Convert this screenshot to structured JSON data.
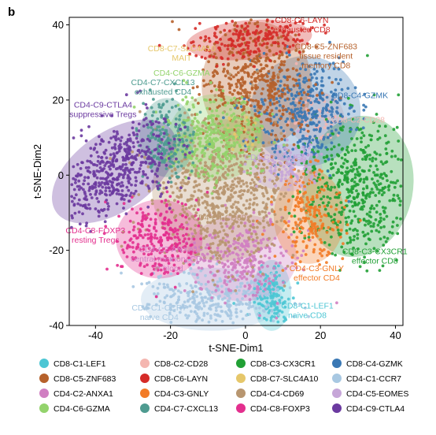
{
  "panel_letter": "b",
  "chart_data": {
    "type": "scatter",
    "xlabel": "t-SNE-Dim1",
    "ylabel": "t-SNE-Dim2",
    "xlim": [
      -47,
      42
    ],
    "ylim": [
      -40,
      42
    ],
    "xticks": [
      -40,
      -20,
      0,
      20,
      40
    ],
    "yticks": [
      -40,
      -20,
      0,
      20,
      40
    ],
    "grid": false,
    "legend_position": "bottom",
    "clusters": [
      {
        "id": "CD8-C1-LEF1",
        "color": "#4cc6d4",
        "center": [
          7,
          -32
        ],
        "spread": [
          2.5,
          4.5
        ],
        "angle": 0,
        "points": 140
      },
      {
        "id": "CD8-C2-CD28",
        "color": "#f4b6b0",
        "center": [
          19,
          15
        ],
        "spread": [
          3.5,
          3.5
        ],
        "angle": 0,
        "points": 70
      },
      {
        "id": "CD8-C3-CX3CR1",
        "color": "#21a035",
        "center": [
          30,
          -3
        ],
        "spread": [
          7,
          9
        ],
        "angle": 10,
        "points": 520
      },
      {
        "id": "CD8-C4-GZMK",
        "color": "#3a78b4",
        "center": [
          16,
          17
        ],
        "spread": [
          7,
          7
        ],
        "angle": 0,
        "points": 380
      },
      {
        "id": "CD8-C5-ZNF683",
        "color": "#b6612b",
        "center": [
          3,
          24
        ],
        "spread": [
          7,
          8
        ],
        "angle": 0,
        "points": 480
      },
      {
        "id": "CD8-C6-LAYN",
        "color": "#d52b28",
        "center": [
          1,
          36
        ],
        "spread": [
          8,
          2.5
        ],
        "angle": -5,
        "points": 200
      },
      {
        "id": "CD8-C7-SLC4A10",
        "color": "#e6c76a",
        "center": [
          -1,
          11
        ],
        "spread": [
          2.5,
          2.5
        ],
        "angle": 0,
        "points": 25
      },
      {
        "id": "CD4-C1-CCR7",
        "color": "#a8c8e2",
        "center": [
          -9,
          -33
        ],
        "spread": [
          9,
          4
        ],
        "angle": 0,
        "points": 330
      },
      {
        "id": "CD4-C2-ANXA1",
        "color": "#d07fc2",
        "center": [
          -1,
          -22
        ],
        "spread": [
          7,
          5.5
        ],
        "angle": 0,
        "points": 300
      },
      {
        "id": "CD4-C3-GNLY",
        "color": "#f27b27",
        "center": [
          17,
          -11
        ],
        "spread": [
          4.5,
          6
        ],
        "angle": 0,
        "points": 200
      },
      {
        "id": "CD4-C4-CD69",
        "color": "#b89670",
        "center": [
          -6,
          -4
        ],
        "spread": [
          9,
          9
        ],
        "angle": 0,
        "points": 720
      },
      {
        "id": "CD4-C5-EOMES",
        "color": "#c6a6d8",
        "center": [
          11,
          2
        ],
        "spread": [
          4.5,
          3
        ],
        "angle": 0,
        "points": 100
      },
      {
        "id": "CD4-C6-GZMA",
        "color": "#93d36c",
        "center": [
          -8,
          10
        ],
        "spread": [
          6,
          5.5
        ],
        "angle": 0,
        "points": 360
      },
      {
        "id": "CD4-C7-CXCL13",
        "color": "#4e9b90",
        "center": [
          -21,
          10
        ],
        "spread": [
          3.5,
          5
        ],
        "angle": 0,
        "points": 200
      },
      {
        "id": "CD4-C8-FOXP3",
        "color": "#e32f8e",
        "center": [
          -23,
          -17
        ],
        "spread": [
          5.5,
          5
        ],
        "angle": 0,
        "points": 260
      },
      {
        "id": "CD4-C9-CTLA4",
        "color": "#6b3aa0",
        "center": [
          -35,
          1
        ],
        "spread": [
          9,
          5
        ],
        "angle": -35,
        "points": 520
      }
    ],
    "annotations": [
      {
        "lines": [
          "CD8-C6-LAYN",
          "exhausted CD8"
        ],
        "color": "#d52b28",
        "at": [
          15,
          40.5
        ]
      },
      {
        "lines": [
          "CD8-C5-ZNF683",
          "tissue resident",
          "memory CD8"
        ],
        "color": "#b6612b",
        "at": [
          21.5,
          33.5
        ]
      },
      {
        "lines": [
          "CD8-C7-SLC4A10",
          "MAIT"
        ],
        "color": "#e6c76a",
        "at": [
          -17,
          33
        ]
      },
      {
        "lines": [
          "CD4-C6-GZMA"
        ],
        "color": "#93d36c",
        "at": [
          -17,
          26.5
        ]
      },
      {
        "lines": [
          "CD4-C7-CXCL13",
          "exhausted CD4"
        ],
        "color": "#4e9b90",
        "at": [
          -22,
          24
        ]
      },
      {
        "lines": [
          "CD4-C9-CTLA4",
          "suppressive Tregs"
        ],
        "color": "#6b3aa0",
        "at": [
          -38,
          18
        ]
      },
      {
        "lines": [
          "CD8-C4-GZMK"
        ],
        "color": "#3a78b4",
        "at": [
          30.5,
          20.5
        ]
      },
      {
        "lines": [
          "CD8-C2-CD28"
        ],
        "color": "#f4b6b0",
        "at": [
          30,
          14
        ]
      },
      {
        "lines": [
          "CD4-C5-EOMES"
        ],
        "color": "#c6a6d8",
        "at": [
          8,
          4
        ]
      },
      {
        "lines": [
          "CD4-C4-CD69"
        ],
        "color": "#b89670",
        "at": [
          -7,
          -12
        ]
      },
      {
        "lines": [
          "CD4-C8-FOXP3",
          "resting Tregs"
        ],
        "color": "#e32f8e",
        "at": [
          -40,
          -15.5
        ]
      },
      {
        "lines": [
          "CD4-C2-ANXA1",
          "central memory CD4",
          "in blood"
        ],
        "color": "#d07fc2",
        "at": [
          -20.5,
          -20.5
        ]
      },
      {
        "lines": [
          "CD8-C3-CX3CR1",
          "effector CD8"
        ],
        "color": "#21a035",
        "at": [
          34.5,
          -21
        ]
      },
      {
        "lines": [
          "CD4-C3-GNLY",
          "effector CD4"
        ],
        "color": "#f27b27",
        "at": [
          19,
          -25.5
        ]
      },
      {
        "lines": [
          "CD4-C1-CCR7",
          "naive CD4"
        ],
        "color": "#a8c8e2",
        "at": [
          -23,
          -36
        ]
      },
      {
        "lines": [
          "CD8-C1-LEF1",
          "naive CD8"
        ],
        "color": "#4cc6d4",
        "at": [
          16.5,
          -35.5
        ]
      }
    ],
    "legend": [
      {
        "label": "CD8-C1-LEF1",
        "color": "#4cc6d4"
      },
      {
        "label": "CD8-C2-CD28",
        "color": "#f4b6b0"
      },
      {
        "label": "CD8-C3-CX3CR1",
        "color": "#21a035"
      },
      {
        "label": "CD8-C4-GZMK",
        "color": "#3a78b4"
      },
      {
        "label": "CD8-C5-ZNF683",
        "color": "#b6612b"
      },
      {
        "label": "CD8-C6-LAYN",
        "color": "#d52b28"
      },
      {
        "label": "CD8-C7-SLC4A10",
        "color": "#e6c76a"
      },
      {
        "label": "CD4-C1-CCR7",
        "color": "#a8c8e2"
      },
      {
        "label": "CD4-C2-ANXA1",
        "color": "#d07fc2"
      },
      {
        "label": "CD4-C3-GNLY",
        "color": "#f27b27"
      },
      {
        "label": "CD4-C4-CD69",
        "color": "#b89670"
      },
      {
        "label": "CD4-C5-EOMES",
        "color": "#c6a6d8"
      },
      {
        "label": "CD4-C6-GZMA",
        "color": "#93d36c"
      },
      {
        "label": "CD4-C7-CXCL13",
        "color": "#4e9b90"
      },
      {
        "label": "CD4-C8-FOXP3",
        "color": "#e32f8e"
      },
      {
        "label": "CD4-C9-CTLA4",
        "color": "#6b3aa0"
      }
    ]
  }
}
